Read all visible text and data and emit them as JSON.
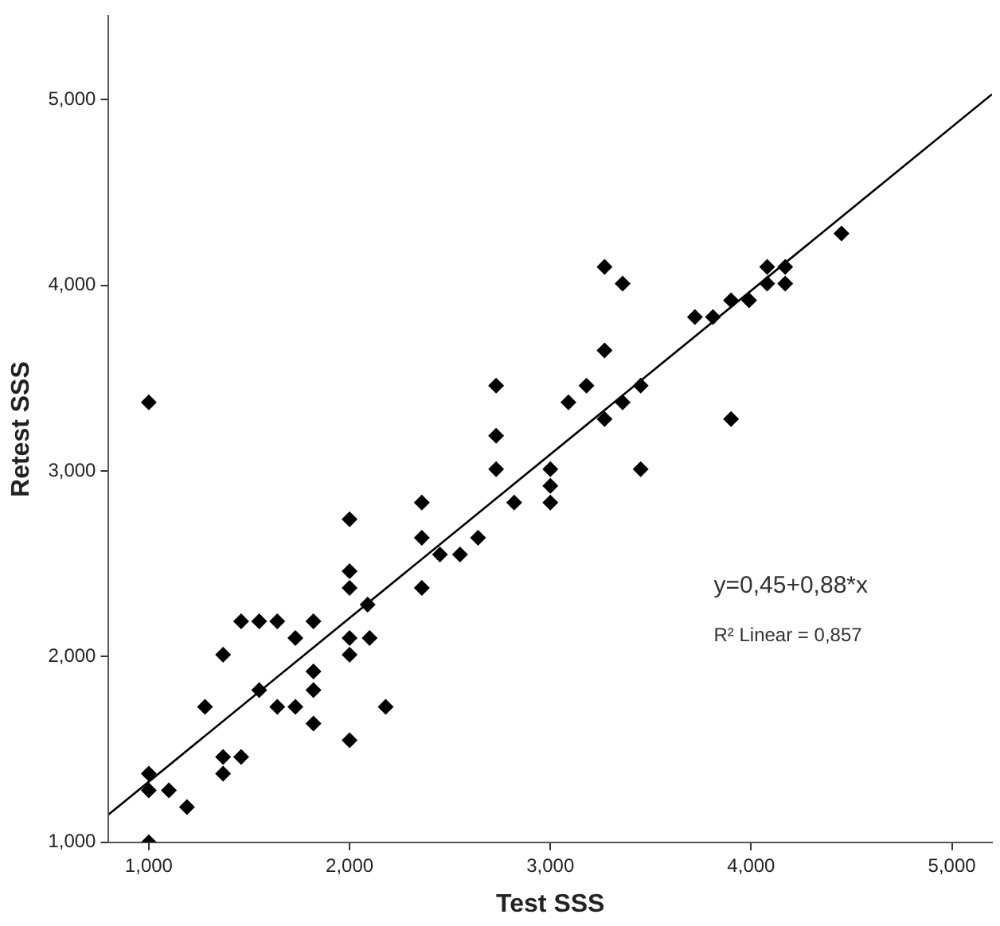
{
  "chart_data": {
    "type": "scatter",
    "xlabel": "Test SSS",
    "ylabel": "Retest SSS",
    "xlim": [
      0.8,
      5.2
    ],
    "ylim": [
      1,
      5.45
    ],
    "xticks": [
      {
        "value": 1,
        "label": "1,000"
      },
      {
        "value": 2,
        "label": "2,000"
      },
      {
        "value": 3,
        "label": "3,000"
      },
      {
        "value": 4,
        "label": "4,000"
      },
      {
        "value": 5,
        "label": "5,000"
      }
    ],
    "yticks": [
      {
        "value": 1,
        "label": "1,000"
      },
      {
        "value": 2,
        "label": "2,000"
      },
      {
        "value": 3,
        "label": "3,000"
      },
      {
        "value": 4,
        "label": "4,000"
      },
      {
        "value": 5,
        "label": "5,000"
      }
    ],
    "grid": false,
    "legend": false,
    "marker": "diamond",
    "series": [
      {
        "color": "#000000",
        "x": [
          1,
          1,
          1,
          1.1,
          1.19,
          1,
          1.28,
          1.37,
          1.37,
          1.37,
          1.46,
          1.46,
          1.55,
          1.64,
          1.55,
          1.64,
          1.73,
          1.73,
          1.82,
          1.82,
          1.82,
          1.82,
          2,
          2,
          2,
          2.1,
          2.18,
          2,
          2,
          2,
          2.09,
          2.36,
          2.36,
          2.36,
          2.45,
          2.55,
          2.64,
          2.73,
          2.82,
          3,
          3,
          3,
          3.45,
          3.27,
          3.36,
          3.27,
          2.73,
          2.73,
          3.09,
          3.18,
          3.27,
          3.36,
          3.45,
          3.9,
          3.72,
          3.81,
          3.9,
          3.99,
          4.08,
          4.08,
          4.17,
          4.17,
          4.45
        ],
        "values": [
          3.37,
          1.37,
          1.28,
          1.28,
          1.19,
          1,
          1.73,
          2.01,
          1.46,
          1.37,
          1.46,
          2.19,
          2.19,
          2.19,
          1.82,
          1.73,
          2.1,
          1.73,
          2.19,
          1.92,
          1.82,
          1.64,
          2.1,
          2.01,
          1.55,
          2.1,
          1.73,
          2.74,
          2.46,
          2.37,
          2.28,
          2.83,
          2.64,
          2.37,
          2.55,
          2.55,
          2.64,
          3.01,
          2.83,
          3.01,
          2.92,
          2.83,
          3.01,
          4.1,
          4.01,
          3.65,
          3.46,
          3.19,
          3.37,
          3.46,
          3.28,
          3.37,
          3.46,
          3.28,
          3.83,
          3.83,
          3.92,
          3.92,
          4.1,
          4.01,
          4.1,
          4.01,
          4.28
        ]
      },
      {
        "type": "line",
        "color": "#000000",
        "marker": "none",
        "x": [
          0.8,
          5.2
        ],
        "values": [
          1.15,
          5.03
        ]
      }
    ],
    "annotations": [
      "y=0,45+0,88*x",
      "R² Linear = 0,857"
    ]
  }
}
